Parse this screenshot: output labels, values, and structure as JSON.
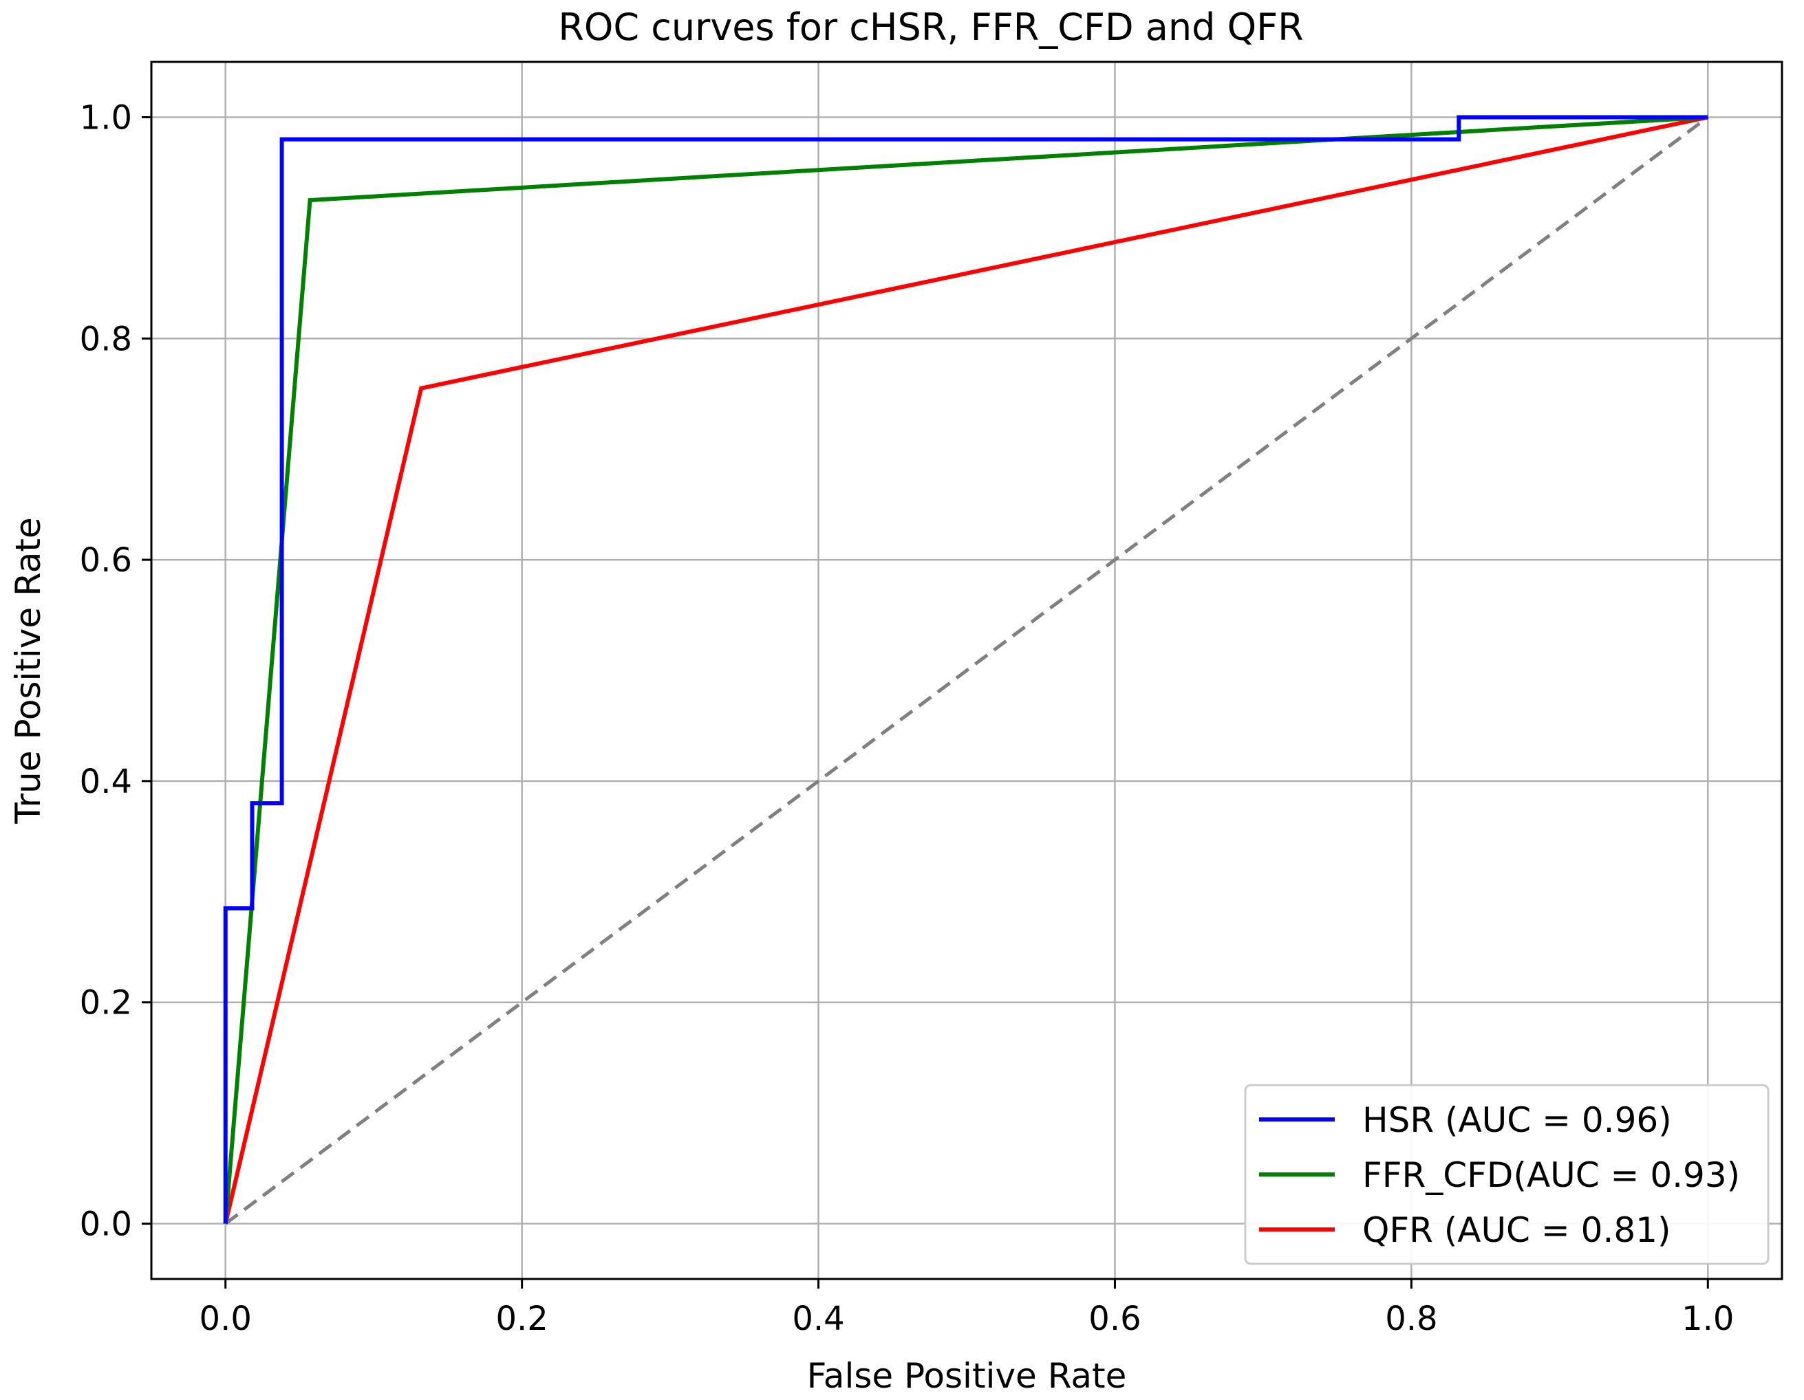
{
  "chart_data": {
    "type": "line",
    "title": "ROC curves for cHSR, FFR_CFD and QFR",
    "xlabel": "False Positive Rate",
    "ylabel": "True Positive Rate",
    "xlim": [
      -0.05,
      1.05
    ],
    "ylim": [
      -0.05,
      1.05
    ],
    "x_ticks": [
      0.0,
      0.2,
      0.4,
      0.6,
      0.8,
      1.0
    ],
    "y_ticks": [
      0.0,
      0.2,
      0.4,
      0.6,
      0.8,
      1.0
    ],
    "x_tick_labels": [
      "0.0",
      "0.2",
      "0.4",
      "0.6",
      "0.8",
      "1.0"
    ],
    "y_tick_labels": [
      "0.0",
      "0.2",
      "0.4",
      "0.6",
      "0.8",
      "1.0"
    ],
    "grid": true,
    "legend_position": "bottom-right",
    "series": [
      {
        "name": "HSR (AUC = 0.96)",
        "color": "#0000ff",
        "points": [
          [
            0.0,
            0.0
          ],
          [
            0.0,
            0.285
          ],
          [
            0.018,
            0.285
          ],
          [
            0.018,
            0.38
          ],
          [
            0.038,
            0.38
          ],
          [
            0.038,
            0.98
          ],
          [
            0.832,
            0.98
          ],
          [
            0.832,
            1.0
          ],
          [
            1.0,
            1.0
          ]
        ]
      },
      {
        "name": "FFR_CFD(AUC = 0.93)",
        "color": "#008000",
        "points": [
          [
            0.0,
            0.0
          ],
          [
            0.057,
            0.925
          ],
          [
            1.0,
            1.0
          ]
        ]
      },
      {
        "name": "QFR (AUC = 0.81)",
        "color": "#ff0000",
        "points": [
          [
            0.0,
            0.0
          ],
          [
            0.132,
            0.755
          ],
          [
            1.0,
            1.0
          ]
        ]
      }
    ],
    "reference_line": {
      "color": "#808080",
      "style": "dashed",
      "points": [
        [
          0.0,
          0.0
        ],
        [
          1.0,
          1.0
        ]
      ]
    }
  }
}
